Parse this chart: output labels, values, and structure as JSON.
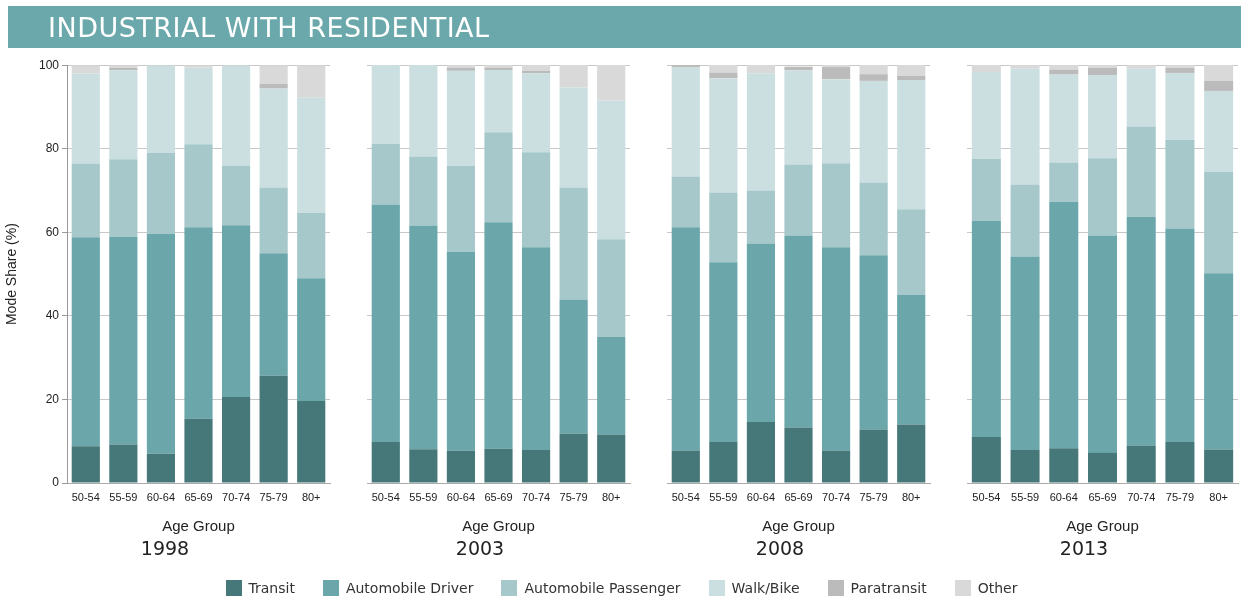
{
  "chart_data": [
    {
      "type": "bar",
      "title": "INDUSTRIAL WITH RESIDENTIAL",
      "subtitle": "1998",
      "xlabel": "Age Group",
      "ylabel": "Mode Share (%)",
      "categories": [
        "50-54",
        "55-59",
        "60-64",
        "65-69",
        "70-74",
        "75-79",
        "80+"
      ],
      "stacked": true,
      "ylim": [
        0,
        100
      ],
      "yticks": [
        0,
        20,
        40,
        60,
        80,
        100
      ],
      "grid": "y",
      "legend": "bottom",
      "series": [
        {
          "name": "Transit",
          "color": "#467779",
          "values": [
            8.8,
            9.2,
            7.0,
            15.4,
            20.6,
            25.7,
            19.6
          ]
        },
        {
          "name": "Automobile Driver",
          "color": "#6ba7aa",
          "values": [
            50.0,
            49.7,
            52.6,
            45.8,
            41.1,
            29.3,
            29.4
          ]
        },
        {
          "name": "Automobile Passenger",
          "color": "#a6c8ca",
          "values": [
            17.7,
            18.6,
            19.4,
            19.9,
            14.2,
            15.7,
            15.7
          ]
        },
        {
          "name": "Walk/Bike",
          "color": "#cbdfe1",
          "values": [
            21.5,
            21.3,
            21.0,
            18.3,
            24.1,
            23.7,
            27.5
          ]
        },
        {
          "name": "Paratransit",
          "color": "#bbbbbb",
          "values": [
            0,
            0.6,
            0,
            0,
            0,
            1.1,
            0
          ]
        },
        {
          "name": "Other",
          "color": "#d9d9d9",
          "values": [
            2.0,
            0.6,
            0,
            0.6,
            0,
            4.5,
            7.8
          ]
        }
      ]
    },
    {
      "type": "bar",
      "subtitle": "2003",
      "xlabel": "Age Group",
      "categories": [
        "50-54",
        "55-59",
        "60-64",
        "65-69",
        "70-74",
        "75-79",
        "80+"
      ],
      "stacked": true,
      "ylim": [
        0,
        100
      ],
      "yticks": [
        0,
        20,
        40,
        60,
        80,
        100
      ],
      "grid": "y",
      "tick_labels": "x",
      "series": [
        {
          "color": "#467779",
          "values": [
            9.8,
            8.1,
            7.7,
            8.2,
            7.9,
            11.8,
            11.6
          ]
        },
        {
          "color": "#6ba7aa",
          "values": [
            56.8,
            53.5,
            47.6,
            54.2,
            48.5,
            32.1,
            23.3
          ]
        },
        {
          "color": "#a6c8ca",
          "values": [
            14.5,
            16.5,
            20.6,
            21.5,
            22.7,
            26.8,
            23.4
          ]
        },
        {
          "color": "#cbdfe1",
          "values": [
            18.9,
            21.9,
            22.7,
            14.9,
            18.9,
            23.9,
            33.2
          ]
        },
        {
          "color": "#bbbbbb",
          "values": [
            0,
            0,
            0.7,
            0.6,
            0.6,
            0,
            0
          ]
        },
        {
          "color": "#d9d9d9",
          "values": [
            0,
            0,
            0.7,
            0.6,
            1.4,
            5.4,
            8.5
          ]
        }
      ]
    },
    {
      "type": "bar",
      "subtitle": "2008",
      "xlabel": "Age Group",
      "categories": [
        "50-54",
        "55-59",
        "60-64",
        "65-69",
        "70-74",
        "75-79",
        "80+"
      ],
      "stacked": true,
      "ylim": [
        0,
        100
      ],
      "yticks": [
        0,
        20,
        40,
        60,
        80,
        100
      ],
      "grid": "y",
      "tick_labels": "x",
      "series": [
        {
          "color": "#467779",
          "values": [
            7.8,
            9.8,
            14.6,
            13.3,
            7.8,
            12.8,
            14.0
          ]
        },
        {
          "color": "#6ba7aa",
          "values": [
            53.4,
            43.0,
            42.7,
            45.9,
            48.6,
            41.7,
            31.0
          ]
        },
        {
          "color": "#a6c8ca",
          "values": [
            12.1,
            16.7,
            12.7,
            17.0,
            20.1,
            17.4,
            20.5
          ]
        },
        {
          "color": "#cbdfe1",
          "values": [
            26.1,
            27.3,
            28.0,
            22.5,
            20.1,
            24.3,
            30.9
          ]
        },
        {
          "color": "#bbbbbb",
          "values": [
            0.6,
            1.4,
            0,
            0.9,
            2.9,
            1.6,
            1.0
          ]
        },
        {
          "color": "#d9d9d9",
          "values": [
            0,
            1.8,
            2.0,
            null,
            0.5,
            2.2,
            2.6
          ]
        }
      ]
    },
    {
      "type": "bar",
      "subtitle": "2013",
      "xlabel": "Age Group",
      "categories": [
        "50-54",
        "55-59",
        "60-64",
        "65-69",
        "70-74",
        "75-79",
        "80+"
      ],
      "stacked": true,
      "ylim": [
        0,
        100
      ],
      "yticks": [
        0,
        20,
        40,
        60,
        80,
        100
      ],
      "grid": "y",
      "tick_labels": "x",
      "series": [
        {
          "color": "#467779",
          "values": [
            11.0,
            7.9,
            8.3,
            7.2,
            9.0,
            9.8,
            8.0
          ]
        },
        {
          "color": "#6ba7aa",
          "values": [
            51.7,
            46.3,
            59.0,
            52.0,
            54.7,
            51.1,
            42.2
          ]
        },
        {
          "color": "#a6c8ca",
          "values": [
            14.8,
            17.2,
            9.4,
            18.5,
            21.6,
            21.2,
            24.2
          ]
        },
        {
          "color": "#cbdfe1",
          "values": [
            20.8,
            27.7,
            21.0,
            19.9,
            13.8,
            16.0,
            19.4
          ]
        },
        {
          "color": "#bbbbbb",
          "values": [
            0,
            0,
            1.2,
            1.7,
            0,
            1.2,
            2.4
          ]
        },
        {
          "color": "#d9d9d9",
          "values": [
            1.7,
            0.9,
            1.1,
            0.7,
            0.9,
            0.7,
            3.8
          ]
        }
      ]
    }
  ]
}
